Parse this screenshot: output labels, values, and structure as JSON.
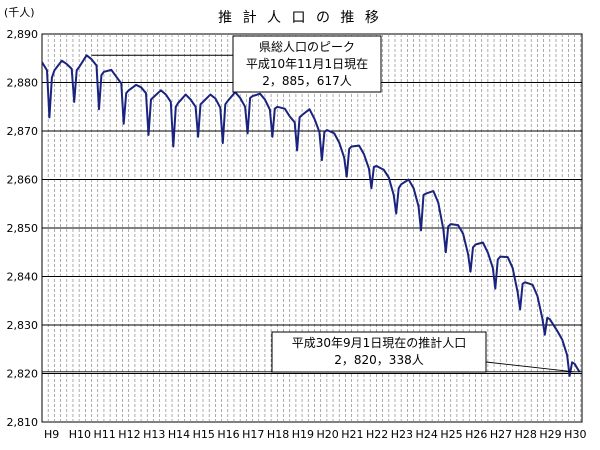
{
  "chart_data": {
    "type": "line",
    "title": "推 計 人 口 の 推 移",
    "unit_label": "(千人)",
    "ylim": [
      2810,
      2890
    ],
    "yticks": [
      "2,810",
      "2,820",
      "2,830",
      "2,840",
      "2,850",
      "2,860",
      "2,870",
      "2,880",
      "2,890"
    ],
    "ytick_values": [
      2810,
      2820,
      2830,
      2840,
      2850,
      2860,
      2870,
      2880,
      2890
    ],
    "categories": [
      "H9",
      "H10",
      "H11",
      "H12",
      "H13",
      "H14",
      "H15",
      "H16",
      "H17",
      "H18",
      "H19",
      "H20",
      "H21",
      "H22",
      "H23",
      "H24",
      "H25",
      "H26",
      "H27",
      "H28",
      "H29",
      "H30"
    ],
    "grid": true,
    "line_color": "#1a237e",
    "series": [
      {
        "x": [
          9.0,
          9.2,
          9.3,
          9.4,
          9.5,
          9.8,
          10.0,
          10.2,
          10.3,
          10.4,
          10.5,
          10.8,
          11.0,
          11.2,
          11.3,
          11.4,
          11.5,
          11.8,
          12.0,
          12.2,
          12.3,
          12.4,
          12.5,
          12.8,
          13.0,
          13.2,
          13.3,
          13.4,
          13.5,
          13.8,
          14.0,
          14.2,
          14.3,
          14.4,
          14.5,
          14.8,
          15.0,
          15.2,
          15.3,
          15.4,
          15.5,
          15.8,
          16.0,
          16.2,
          16.3,
          16.4,
          16.5,
          16.8,
          17.0,
          17.2,
          17.3,
          17.4,
          17.5,
          17.8,
          18.0,
          18.2,
          18.3,
          18.4,
          18.5,
          18.8,
          19.0,
          19.2,
          19.3,
          19.4,
          19.5,
          19.8,
          20.0,
          20.2,
          20.3,
          20.4,
          20.5,
          20.8,
          21.0,
          21.2,
          21.3,
          21.4,
          21.5,
          21.8,
          22.0,
          22.2,
          22.3,
          22.4,
          22.5,
          22.8,
          23.0,
          23.2,
          23.3,
          23.4,
          23.5,
          23.8,
          24.0,
          24.2,
          24.3,
          24.4,
          24.5,
          24.8,
          25.0,
          25.2,
          25.3,
          25.4,
          25.5,
          25.8,
          26.0,
          26.2,
          26.3,
          26.4,
          26.5,
          26.8,
          27.0,
          27.2,
          27.3,
          27.4,
          27.5,
          27.8,
          28.0,
          28.2,
          28.3,
          28.4,
          28.5,
          28.8,
          29.0,
          29.2,
          29.3,
          29.4,
          29.5,
          29.8,
          30.0,
          30.2,
          30.3,
          30.4,
          30.5,
          30.7
        ],
        "y": [
          2884.2,
          2882.5,
          2872.8,
          2881.0,
          2882.5,
          2884.5,
          2883.8,
          2882.8,
          2876.0,
          2882.5,
          2883.2,
          2885.6,
          2884.8,
          2883.5,
          2874.5,
          2881.5,
          2882.2,
          2882.6,
          2881.2,
          2879.8,
          2871.5,
          2877.8,
          2878.4,
          2879.5,
          2879.0,
          2877.8,
          2869.2,
          2876.5,
          2877.0,
          2878.4,
          2877.5,
          2876.0,
          2866.8,
          2875.0,
          2875.8,
          2877.5,
          2876.5,
          2875.0,
          2868.8,
          2875.5,
          2876.0,
          2877.5,
          2876.7,
          2874.8,
          2867.5,
          2875.5,
          2876.2,
          2878.0,
          2876.8,
          2875.0,
          2869.5,
          2876.8,
          2877.2,
          2877.7,
          2876.5,
          2874.4,
          2868.8,
          2874.6,
          2875.0,
          2874.6,
          2873.0,
          2871.8,
          2866.0,
          2872.8,
          2873.3,
          2874.5,
          2872.5,
          2869.8,
          2864.0,
          2869.8,
          2870.2,
          2869.5,
          2867.6,
          2864.5,
          2860.6,
          2866.3,
          2866.8,
          2867.0,
          2865.2,
          2862.2,
          2858.2,
          2862.6,
          2862.8,
          2862.0,
          2860.4,
          2856.8,
          2853.0,
          2858.2,
          2859.0,
          2860.0,
          2858.2,
          2854.5,
          2849.5,
          2856.8,
          2857.1,
          2857.6,
          2855.2,
          2849.8,
          2845.0,
          2850.3,
          2850.8,
          2850.6,
          2848.8,
          2844.6,
          2841.0,
          2846.0,
          2846.6,
          2847.0,
          2844.9,
          2841.8,
          2837.5,
          2843.5,
          2844.1,
          2844.0,
          2841.8,
          2836.8,
          2833.2,
          2838.5,
          2838.8,
          2838.3,
          2836.0,
          2831.3,
          2828.0,
          2831.5,
          2831.2,
          2828.8,
          2827.0,
          2823.8,
          2819.5,
          2822.3,
          2822.0,
          2820.3
        ]
      }
    ],
    "annotations": [
      {
        "lines": [
          "県総人口のピーク",
          "平成10年11月1日現在",
          "2，885，617人"
        ],
        "x": 11.0,
        "y": 2885.617
      },
      {
        "lines": [
          "平成30年9月1日現在の推計人口",
          "2，820，338人"
        ],
        "x": 30.7,
        "y": 2820.338
      }
    ]
  }
}
